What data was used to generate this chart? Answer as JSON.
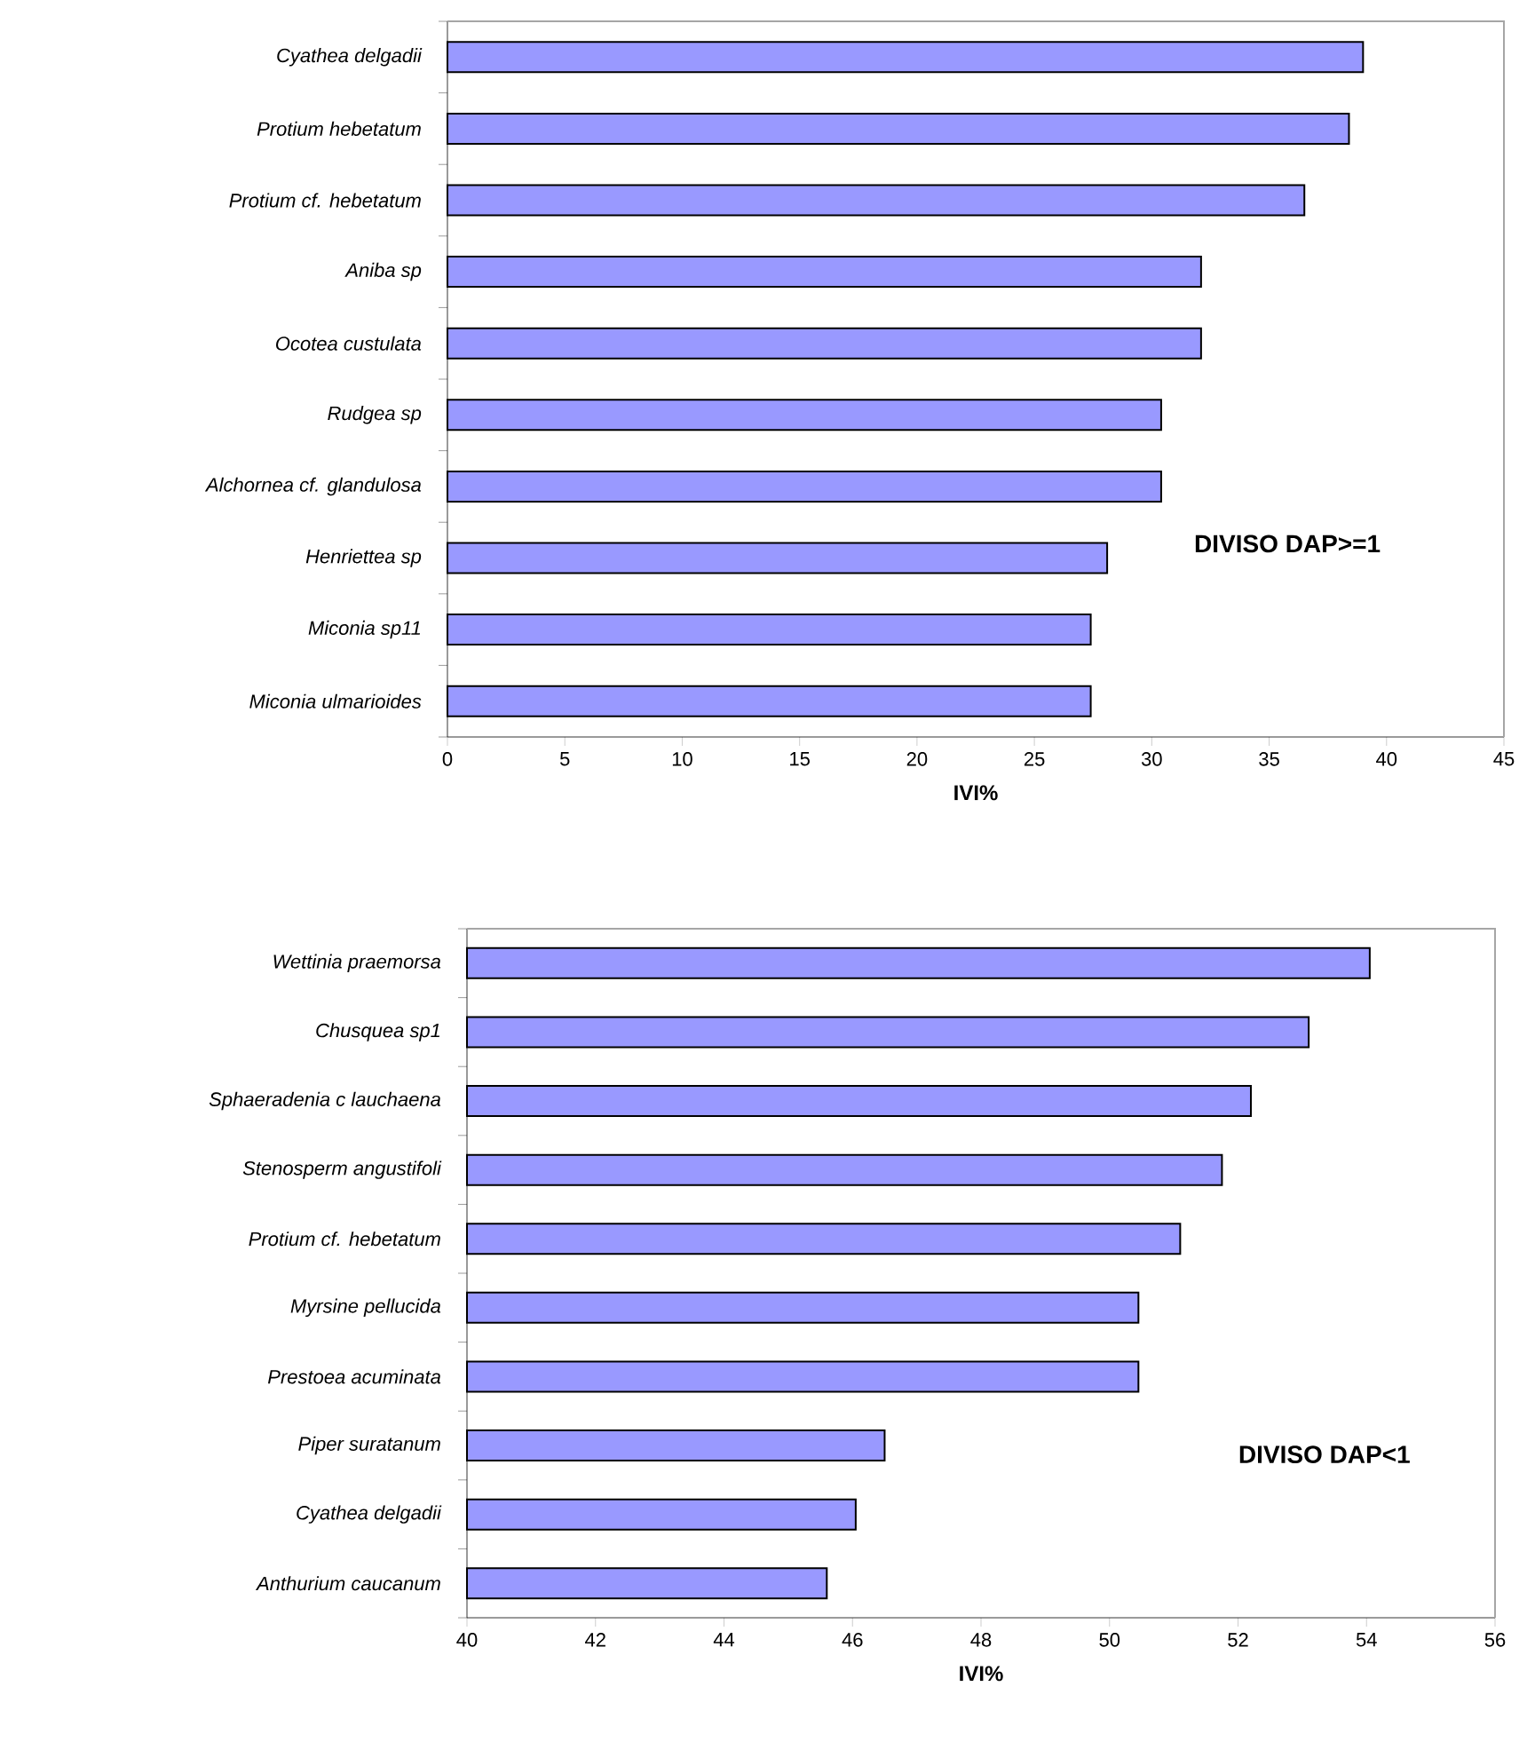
{
  "chart_data": [
    {
      "type": "bar",
      "orientation": "horizontal",
      "categories": [
        "Cyathea delgadii",
        "Protium hebetatum",
        "Protium cf. hebetatum",
        "Aniba sp",
        "Ocotea custulata",
        "Rudgea sp",
        "Alchornea cf. glandulosa",
        "Henriettea sp",
        "Miconia sp11",
        "Miconia ulmarioides"
      ],
      "values": [
        39.0,
        38.4,
        36.5,
        32.1,
        32.1,
        30.4,
        30.4,
        28.1,
        27.4,
        27.4
      ],
      "color": "#9999ff",
      "xlim": [
        0,
        45
      ],
      "xticks": [
        0,
        5,
        10,
        15,
        20,
        25,
        30,
        35,
        40,
        45
      ],
      "xlabel": "IVI%",
      "annotations": [
        "DIVISO DAP>=1"
      ],
      "grid": false
    },
    {
      "type": "bar",
      "orientation": "horizontal",
      "categories": [
        "Wettinia praemorsa",
        "Chusquea sp1",
        "Sphaeradenia c lauchaena",
        "Stenosperm angustifoli",
        "Protium cf. hebetatum",
        "Myrsine pellucida",
        "Prestoea acuminata",
        "Piper suratanum",
        "Cyathea delgadii",
        "Anthurium caucanum"
      ],
      "values": [
        54.05,
        53.1,
        52.2,
        51.75,
        51.1,
        50.45,
        50.45,
        46.5,
        46.05,
        45.6
      ],
      "color": "#9999ff",
      "xlim": [
        40,
        56
      ],
      "xticks": [
        40,
        42,
        44,
        46,
        48,
        50,
        52,
        54,
        56
      ],
      "xlabel": "IVI%",
      "annotations": [
        "DIVISO DAP<1"
      ],
      "grid": false
    }
  ]
}
